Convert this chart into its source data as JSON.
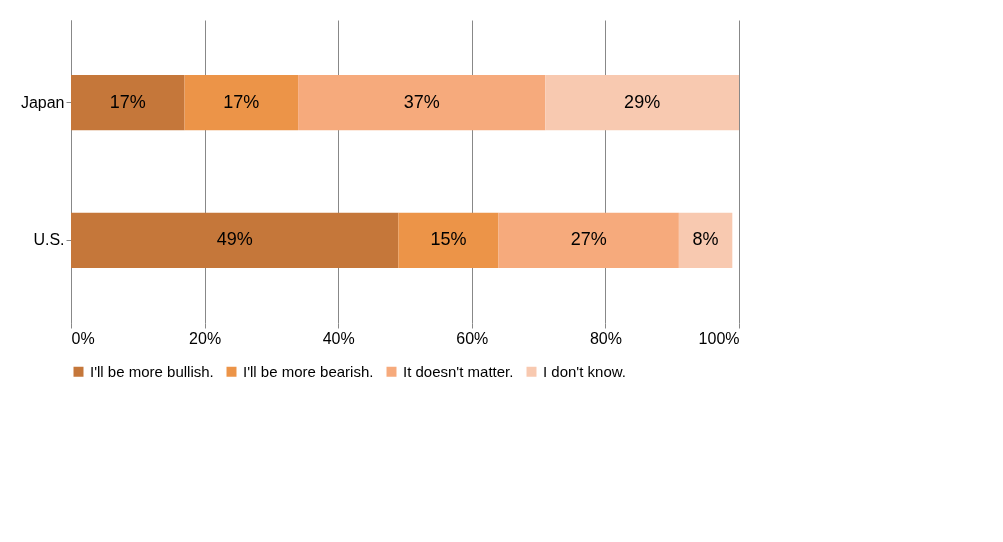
{
  "chart_data": {
    "type": "bar",
    "orientation": "horizontal",
    "stacked": true,
    "categories": [
      "Japan",
      "U.S."
    ],
    "series": [
      {
        "name": "I'll be more bullish.",
        "color": "#c5773a",
        "values": [
          17,
          49
        ],
        "value_labels": [
          "17%",
          "49%"
        ]
      },
      {
        "name": "I'll be more bearish.",
        "color": "#ec9448",
        "values": [
          17,
          15
        ],
        "value_labels": [
          "17%",
          "15%"
        ]
      },
      {
        "name": "It doesn't matter.",
        "color": "#f6aa7c",
        "values": [
          37,
          27
        ],
        "value_labels": [
          "37%",
          "27%"
        ]
      },
      {
        "name": "I don't know.",
        "color": "#f8c9b0",
        "values": [
          29,
          8
        ],
        "value_labels": [
          "29%",
          "8%"
        ]
      }
    ],
    "xlim": [
      0,
      100
    ],
    "xticks": [
      {
        "value": 0,
        "label": "0%"
      },
      {
        "value": 20,
        "label": "20%"
      },
      {
        "value": 40,
        "label": "40%"
      },
      {
        "value": 60,
        "label": "60%"
      },
      {
        "value": 80,
        "label": "80%"
      },
      {
        "value": 100,
        "label": "100%"
      }
    ],
    "grid": "x",
    "legend": "bottom"
  }
}
